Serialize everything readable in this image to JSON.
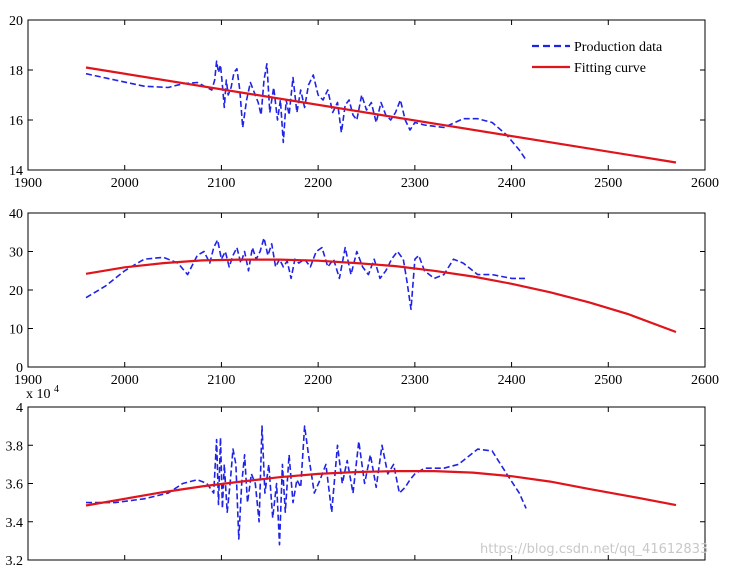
{
  "colors": {
    "production": "#1f23e6",
    "fit": "#e0141b",
    "axis": "#000000"
  },
  "legend": {
    "production": "Production data",
    "fit": "Fitting curve",
    "position": "top-right"
  },
  "watermark": "https://blog.csdn.net/qq_41612833",
  "chart_data": [
    {
      "type": "line",
      "title": "",
      "xlabel": "",
      "ylabel": "",
      "xlim": [
        1900,
        2600
      ],
      "ylim": [
        14,
        20
      ],
      "xticks": [
        "1900",
        "2000",
        "2100",
        "2200",
        "2300",
        "2400",
        "2500",
        "2600"
      ],
      "yticks": [
        "14",
        "16",
        "18",
        "20"
      ],
      "grid": false,
      "series": [
        {
          "name": "Production data",
          "style": "dashed",
          "x": [
            1960,
            1990,
            2020,
            2045,
            2060,
            2075,
            2085,
            2090,
            2093,
            2095,
            2097,
            2099,
            2101,
            2103,
            2105,
            2107,
            2110,
            2113,
            2116,
            2119,
            2122,
            2126,
            2130,
            2134,
            2138,
            2141,
            2144,
            2147,
            2150,
            2154,
            2158,
            2161,
            2164,
            2167,
            2170,
            2174,
            2178,
            2182,
            2186,
            2190,
            2195,
            2200,
            2205,
            2210,
            2215,
            2220,
            2224,
            2228,
            2232,
            2236,
            2240,
            2245,
            2250,
            2255,
            2260,
            2265,
            2270,
            2275,
            2280,
            2285,
            2290,
            2295,
            2300,
            2310,
            2330,
            2350,
            2365,
            2380,
            2395,
            2408,
            2415
          ],
          "y": [
            17.85,
            17.6,
            17.35,
            17.3,
            17.45,
            17.5,
            17.3,
            17.2,
            17.6,
            18.35,
            17.9,
            18.2,
            17.4,
            16.5,
            17.6,
            17.0,
            17.3,
            17.9,
            18.05,
            17.2,
            15.7,
            16.8,
            17.5,
            17.1,
            16.7,
            16.2,
            17.6,
            18.25,
            16.3,
            17.3,
            16.0,
            16.8,
            15.1,
            16.8,
            16.2,
            17.7,
            16.3,
            17.2,
            16.5,
            17.4,
            17.8,
            17.0,
            16.8,
            17.2,
            16.3,
            16.7,
            15.5,
            16.6,
            16.8,
            16.2,
            16.0,
            17.0,
            16.4,
            16.7,
            15.9,
            16.7,
            16.2,
            16.0,
            16.3,
            16.8,
            16.0,
            15.6,
            15.9,
            15.8,
            15.7,
            16.05,
            16.05,
            15.9,
            15.4,
            14.8,
            14.4
          ]
        },
        {
          "name": "Fitting curve",
          "style": "solid",
          "x": [
            1960,
            2570
          ],
          "y": [
            18.1,
            14.3
          ]
        }
      ]
    },
    {
      "type": "line",
      "title": "",
      "xlabel": "",
      "ylabel": "",
      "xlim": [
        1900,
        2600
      ],
      "ylim": [
        0,
        40
      ],
      "xticks": [
        "1900",
        "2000",
        "2100",
        "2200",
        "2300",
        "2400",
        "2500",
        "2600"
      ],
      "yticks": [
        "0",
        "10",
        "20",
        "30",
        "40"
      ],
      "grid": false,
      "series": [
        {
          "name": "Production data",
          "style": "dashed",
          "x": [
            1960,
            1980,
            2000,
            2020,
            2040,
            2055,
            2065,
            2075,
            2082,
            2088,
            2092,
            2096,
            2100,
            2104,
            2108,
            2112,
            2116,
            2120,
            2124,
            2128,
            2132,
            2136,
            2140,
            2144,
            2148,
            2152,
            2156,
            2160,
            2164,
            2168,
            2172,
            2176,
            2180,
            2186,
            2192,
            2198,
            2204,
            2210,
            2216,
            2222,
            2228,
            2234,
            2240,
            2246,
            2252,
            2258,
            2264,
            2270,
            2276,
            2282,
            2288,
            2292,
            2296,
            2300,
            2304,
            2310,
            2320,
            2330,
            2340,
            2350,
            2365,
            2380,
            2400,
            2415
          ],
          "y": [
            18,
            21,
            25,
            28,
            28.5,
            27,
            24,
            29,
            30,
            27,
            31,
            33,
            28,
            30,
            26,
            29,
            31,
            27,
            30,
            25,
            31,
            28,
            30,
            33.5,
            29,
            32,
            26,
            28,
            26,
            27.5,
            23,
            28,
            27,
            28,
            26,
            30,
            31,
            26,
            28,
            23,
            31,
            24,
            30,
            26,
            24,
            28,
            23,
            25,
            28,
            30,
            28,
            22,
            15,
            28,
            29,
            25,
            23,
            24,
            28,
            27,
            24,
            24,
            23,
            23
          ]
        },
        {
          "name": "Fitting curve",
          "style": "solid",
          "x": [
            1960,
            2000,
            2040,
            2080,
            2120,
            2160,
            2200,
            2240,
            2280,
            2320,
            2360,
            2400,
            2440,
            2480,
            2520,
            2570
          ],
          "y": [
            24.2,
            25.9,
            27.0,
            27.7,
            27.9,
            27.9,
            27.6,
            27.0,
            26.2,
            25.0,
            23.5,
            21.6,
            19.4,
            16.8,
            13.8,
            9.1
          ]
        }
      ]
    },
    {
      "type": "line",
      "title": "",
      "xlabel": "",
      "ylabel": "",
      "xlim": [
        1900,
        2600
      ],
      "ylim": [
        3.2,
        4.0
      ],
      "y_multiplier": "x 10",
      "y_multiplier_exp": "4",
      "yticks": [
        "3.2",
        "3.4",
        "3.6",
        "3.8",
        "4"
      ],
      "grid": false,
      "series": [
        {
          "name": "Production data",
          "style": "dashed",
          "x": [
            1960,
            1990,
            2020,
            2045,
            2060,
            2075,
            2085,
            2092,
            2095,
            2097,
            2099,
            2101,
            2103,
            2106,
            2109,
            2112,
            2115,
            2118,
            2121,
            2124,
            2127,
            2131,
            2135,
            2139,
            2142,
            2145,
            2149,
            2153,
            2157,
            2160,
            2163,
            2166,
            2170,
            2174,
            2178,
            2182,
            2186,
            2190,
            2196,
            2202,
            2208,
            2214,
            2220,
            2225,
            2230,
            2236,
            2242,
            2248,
            2254,
            2260,
            2266,
            2272,
            2278,
            2284,
            2290,
            2295,
            2300,
            2310,
            2330,
            2345,
            2365,
            2380,
            2395,
            2408,
            2415
          ],
          "y": [
            3.5,
            3.5,
            3.52,
            3.55,
            3.6,
            3.62,
            3.6,
            3.55,
            3.83,
            3.49,
            3.84,
            3.47,
            3.7,
            3.45,
            3.6,
            3.78,
            3.7,
            3.31,
            3.6,
            3.75,
            3.5,
            3.65,
            3.6,
            3.4,
            3.9,
            3.55,
            3.7,
            3.42,
            3.6,
            3.28,
            3.7,
            3.45,
            3.75,
            3.5,
            3.62,
            3.58,
            3.9,
            3.75,
            3.55,
            3.62,
            3.7,
            3.45,
            3.8,
            3.6,
            3.72,
            3.55,
            3.82,
            3.6,
            3.75,
            3.58,
            3.8,
            3.65,
            3.7,
            3.55,
            3.58,
            3.62,
            3.65,
            3.68,
            3.68,
            3.7,
            3.78,
            3.77,
            3.65,
            3.55,
            3.47
          ]
        },
        {
          "name": "Fitting curve",
          "style": "solid",
          "x": [
            1960,
            2000,
            2040,
            2080,
            2120,
            2160,
            2200,
            2240,
            2280,
            2320,
            2360,
            2400,
            2440,
            2480,
            2520,
            2570
          ],
          "y": [
            3.485,
            3.52,
            3.555,
            3.585,
            3.61,
            3.633,
            3.65,
            3.66,
            3.665,
            3.665,
            3.657,
            3.638,
            3.61,
            3.572,
            3.535,
            3.487
          ]
        }
      ]
    }
  ]
}
